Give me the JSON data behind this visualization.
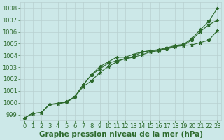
{
  "x": [
    0,
    1,
    2,
    3,
    4,
    5,
    6,
    7,
    8,
    9,
    10,
    11,
    12,
    13,
    14,
    15,
    16,
    17,
    18,
    19,
    20,
    21,
    22,
    23
  ],
  "line1": [
    998.7,
    999.1,
    999.15,
    999.85,
    999.9,
    1000.05,
    1000.45,
    1001.35,
    1001.85,
    1002.55,
    1003.05,
    1003.45,
    1003.75,
    1003.9,
    1004.3,
    1004.4,
    1004.45,
    1004.6,
    1004.8,
    1004.85,
    1005.35,
    1006.05,
    1006.6,
    1007.0
  ],
  "line2": [
    998.7,
    999.1,
    999.15,
    999.85,
    999.95,
    1000.1,
    1000.5,
    1001.5,
    1002.35,
    1002.85,
    1003.35,
    1003.55,
    1003.7,
    1003.85,
    1004.05,
    1004.3,
    1004.4,
    1004.55,
    1004.75,
    1004.85,
    1004.9,
    1005.1,
    1005.3,
    1006.1
  ],
  "line3": [
    998.7,
    999.1,
    999.15,
    999.85,
    999.95,
    1000.05,
    1000.45,
    1001.5,
    1002.35,
    1003.05,
    1003.45,
    1003.85,
    1003.85,
    1004.1,
    1004.3,
    1004.4,
    1004.5,
    1004.65,
    1004.85,
    1004.95,
    1005.45,
    1006.2,
    1006.9,
    1008.0
  ],
  "line_color": "#2d6a2d",
  "bg_color": "#cce8e8",
  "grid_color": "#b8d0d0",
  "xlabel": "Graphe pression niveau de la mer (hPa)",
  "ylim": [
    998.5,
    1008.5
  ],
  "xlim_min": -0.5,
  "xlim_max": 23.5,
  "yticks": [
    999,
    1000,
    1001,
    1002,
    1003,
    1004,
    1005,
    1006,
    1007,
    1008
  ],
  "xticks": [
    0,
    1,
    2,
    3,
    4,
    5,
    6,
    7,
    8,
    9,
    10,
    11,
    12,
    13,
    14,
    15,
    16,
    17,
    18,
    19,
    20,
    21,
    22,
    23
  ],
  "linewidth": 0.8,
  "markersize": 3.5,
  "xlabel_fontsize": 7.5,
  "tick_fontsize": 6.0
}
